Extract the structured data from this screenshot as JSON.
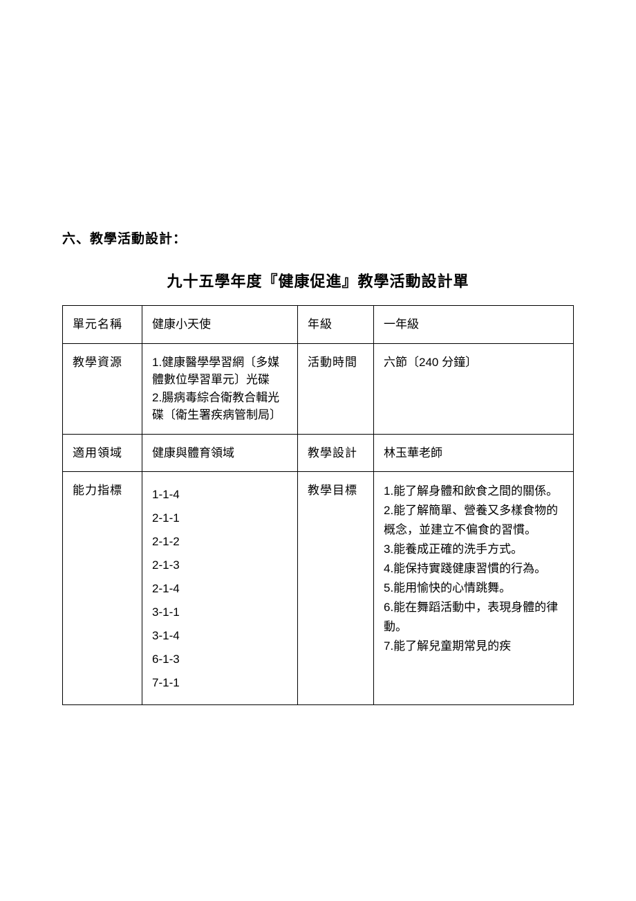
{
  "section_heading": "六、教學活動設計：",
  "doc_title": "九十五學年度『健康促進』教學活動設計單",
  "labels": {
    "unit_name": "單元名稱",
    "grade": "年級",
    "resources": "教學資源",
    "activity_time": "活動時間",
    "domain": "適用領域",
    "designer": "教學設計",
    "indicators": "能力指標",
    "objectives": "教學目標"
  },
  "values": {
    "unit_name": "健康小天使",
    "grade": "一年級",
    "resources": "1.健康醫學學習網〔多媒體數位學習單元〕光碟\n2.腸病毒綜合衛教合輯光碟〔衛生署疾病管制局〕",
    "activity_time": "六節〔240 分鐘〕",
    "domain": "健康與體育領域",
    "designer": "林玉華老師"
  },
  "indicators": [
    "1-1-4",
    "2-1-1",
    "2-1-2",
    "2-1-3",
    "2-1-4",
    "3-1-1",
    "3-1-4",
    "6-1-3",
    "7-1-1"
  ],
  "objectives": [
    "1.能了解身體和飲食之間的關係。",
    "2.能了解簡單、營養又多樣食物的概念，並建立不偏食的習慣。",
    "3.能養成正確的洗手方式。",
    "4.能保持實踐健康習慣的行為。",
    "5.能用愉快的心情跳舞。",
    "6.能在舞蹈活動中，表現身體的律動。",
    "7.能了解兒童期常見的疾"
  ],
  "styling": {
    "page_background": "#ffffff",
    "text_color": "#000000",
    "border_color": "#000000",
    "heading_fontsize": 19,
    "title_fontsize": 22,
    "body_fontsize": 17
  }
}
